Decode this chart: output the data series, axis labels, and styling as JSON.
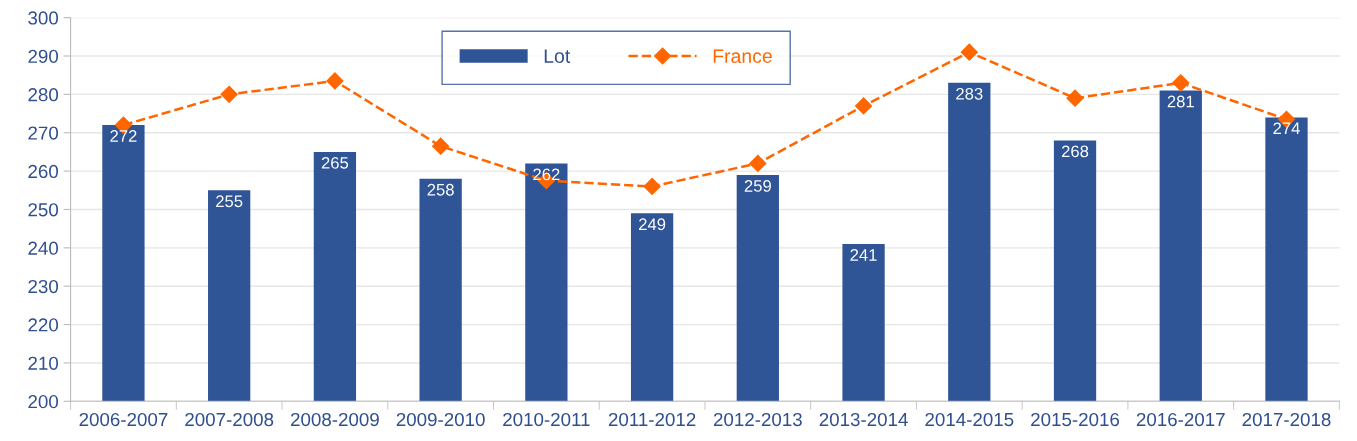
{
  "chart_data": {
    "type": "bar",
    "categories": [
      "2006-2007",
      "2007-2008",
      "2008-2009",
      "2009-2010",
      "2010-2011",
      "2011-2012",
      "2012-2013",
      "2013-2014",
      "2014-2015",
      "2015-2016",
      "2016-2017",
      "2017-2018"
    ],
    "series": [
      {
        "name": "Lot",
        "color": "#2f5597",
        "values": [
          272,
          255,
          265,
          258,
          262,
          249,
          259,
          241,
          283,
          268,
          281,
          274
        ],
        "data_labels": true
      },
      {
        "name": "France",
        "type": "line",
        "color": "#ff6600",
        "marker": "diamond",
        "line_style": "dashed",
        "values": [
          272,
          280,
          283.5,
          266.5,
          257.5,
          256,
          262,
          277,
          291,
          279,
          283,
          273.5
        ]
      }
    ],
    "ylim": [
      200,
      300
    ],
    "yticks": [
      200,
      210,
      220,
      230,
      240,
      250,
      260,
      270,
      280,
      290,
      300
    ],
    "grid": "y",
    "legend": "top"
  }
}
